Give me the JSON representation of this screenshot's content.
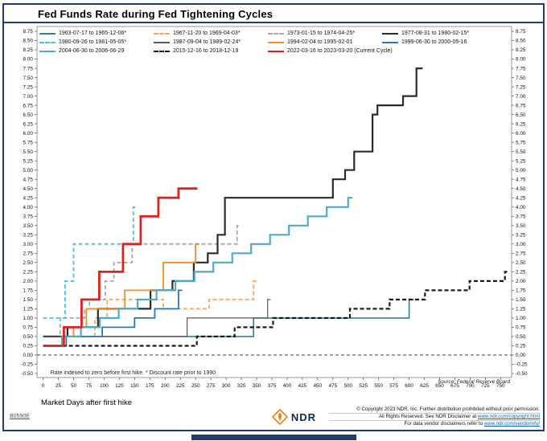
{
  "title": "Fed Funds Rate during Fed Tightening Cycles",
  "footnote": "Rate indexed to zero before first hike.  * Discount rate prior to 1990",
  "source": "Source:   Federal Reserve Board",
  "doc_id": "B0590E",
  "footer": {
    "logo_text": "NDR",
    "line1": "© Copyright 2023 NDR, Inc. Further distribution prohibited without prior permission.",
    "line2_prefix": "All Rights Reserved. See NDR Disclaimer at ",
    "line2_link": "www.ndr.com/copyright.html",
    "line3_prefix": "For data vendor disclaimers refer to ",
    "line3_link": "www.ndr.com/vendorinfo/"
  },
  "colors": {
    "frame_navy": "#1e3c6e",
    "link_blue": "#0563c1",
    "logo_orange": "#f08018",
    "zero_line": "#444444",
    "axis_border": "#9a9a9a"
  },
  "chart_data": {
    "type": "line",
    "step": true,
    "title": "Fed Funds Rate during Fed Tightening Cycles",
    "xlabel": "Market Days after first hike",
    "ylabel": "",
    "x_axis": {
      "min": 0,
      "max": 750,
      "tick_step": 25
    },
    "y_axis": {
      "min": -0.5,
      "max": 8.75,
      "tick_step": 0.25,
      "format": "0.00",
      "sides": "both"
    },
    "grid": false,
    "legend_position": "top",
    "zero_line": {
      "y": 0,
      "style": "dashed"
    },
    "series": [
      {
        "name": "1963-07-17 to 1965-12-06*",
        "color": "#2e8099",
        "dash": "solid",
        "width": 1.6,
        "points": [
          [
            0,
            0.5
          ],
          [
            345,
            1.0
          ],
          [
            600,
            1.5
          ],
          [
            608,
            1.5
          ]
        ]
      },
      {
        "name": "1967-11-20 to 1969-04-03*",
        "color": "#f9a65a",
        "dash": "dashed",
        "width": 1.8,
        "points": [
          [
            0,
            0.5
          ],
          [
            85,
            1.0
          ],
          [
            105,
            1.5
          ],
          [
            197,
            1.25
          ],
          [
            272,
            1.5
          ],
          [
            345,
            2.0
          ],
          [
            350,
            2.0
          ]
        ]
      },
      {
        "name": "1973-01-15 to 1974-04-25*",
        "color": "#a8a8a8",
        "dash": "dashed",
        "width": 1.8,
        "points": [
          [
            0,
            0.5
          ],
          [
            28,
            1.0
          ],
          [
            68,
            1.25
          ],
          [
            76,
            1.5
          ],
          [
            102,
            2.0
          ],
          [
            116,
            2.5
          ],
          [
            146,
            3.0
          ],
          [
            318,
            3.5
          ],
          [
            324,
            3.5
          ]
        ]
      },
      {
        "name": "1977-08-31 to 1980-02-15*",
        "color": "#2b2b2b",
        "dash": "solid",
        "width": 2.2,
        "points": [
          [
            0,
            0.5
          ],
          [
            40,
            0.75
          ],
          [
            90,
            1.25
          ],
          [
            176,
            1.75
          ],
          [
            212,
            2.0
          ],
          [
            247,
            2.5
          ],
          [
            270,
            2.75
          ],
          [
            286,
            3.25
          ],
          [
            298,
            4.25
          ],
          [
            475,
            4.75
          ],
          [
            495,
            5.0
          ],
          [
            510,
            5.5
          ],
          [
            540,
            6.5
          ],
          [
            548,
            6.75
          ],
          [
            590,
            7.0
          ],
          [
            612,
            7.75
          ],
          [
            622,
            7.75
          ]
        ]
      },
      {
        "name": "1980-09-26 to 1981-05-05*",
        "color": "#49c0e8",
        "dash": "dashed",
        "width": 1.8,
        "points": [
          [
            0,
            1.0
          ],
          [
            36,
            2.0
          ],
          [
            50,
            3.0
          ],
          [
            148,
            4.0
          ],
          [
            153,
            4.0
          ]
        ]
      },
      {
        "name": "1987-09-04 to 1989-02-24*",
        "color": "#595959",
        "dash": "solid",
        "width": 1.2,
        "points": [
          [
            0,
            0.5
          ],
          [
            236,
            1.0
          ],
          [
            368,
            1.5
          ],
          [
            373,
            1.5
          ]
        ]
      },
      {
        "name": "1994-02-04 to 1995-02-01",
        "color": "#f08c28",
        "dash": "solid",
        "width": 1.8,
        "points": [
          [
            0,
            0.25
          ],
          [
            32,
            0.5
          ],
          [
            50,
            0.75
          ],
          [
            71,
            1.25
          ],
          [
            134,
            1.75
          ],
          [
            197,
            2.5
          ],
          [
            250,
            3.0
          ],
          [
            256,
            3.0
          ]
        ]
      },
      {
        "name": "1999-06-30 to 2000-05-16",
        "color": "#2e75b6",
        "dash": "solid",
        "width": 1.8,
        "points": [
          [
            0,
            0.25
          ],
          [
            38,
            0.5
          ],
          [
            97,
            0.75
          ],
          [
            150,
            1.0
          ],
          [
            183,
            1.25
          ],
          [
            222,
            1.75
          ],
          [
            228,
            1.75
          ]
        ]
      },
      {
        "name": "2004-06-30 to 2006-06-29",
        "color": "#4bacc6",
        "dash": "solid",
        "width": 2.2,
        "points": [
          [
            0,
            0.25
          ],
          [
            31,
            0.5
          ],
          [
            62,
            0.75
          ],
          [
            93,
            1.0
          ],
          [
            124,
            1.25
          ],
          [
            155,
            1.5
          ],
          [
            186,
            1.75
          ],
          [
            217,
            2.0
          ],
          [
            248,
            2.25
          ],
          [
            279,
            2.5
          ],
          [
            310,
            2.75
          ],
          [
            341,
            3.0
          ],
          [
            372,
            3.25
          ],
          [
            403,
            3.5
          ],
          [
            434,
            3.75
          ],
          [
            465,
            4.0
          ],
          [
            500,
            4.25
          ],
          [
            507,
            4.25
          ]
        ]
      },
      {
        "name": "2015-12-16 to 2018-12-19",
        "color": "#1a1a1a",
        "dash": "dashed",
        "width": 2.2,
        "points": [
          [
            0,
            0.25
          ],
          [
            252,
            0.5
          ],
          [
            314,
            0.75
          ],
          [
            377,
            1.0
          ],
          [
            503,
            1.25
          ],
          [
            568,
            1.5
          ],
          [
            626,
            1.75
          ],
          [
            699,
            2.0
          ],
          [
            757,
            2.25
          ],
          [
            762,
            2.25
          ]
        ]
      },
      {
        "name": "2022-03-16 to 2023-03-20 (Current Cycle)",
        "color": "#dd2222",
        "dash": "solid",
        "width": 2.8,
        "points": [
          [
            0,
            0.25
          ],
          [
            34,
            0.75
          ],
          [
            63,
            1.5
          ],
          [
            92,
            2.25
          ],
          [
            131,
            3.0
          ],
          [
            160,
            3.75
          ],
          [
            189,
            4.25
          ],
          [
            222,
            4.5
          ],
          [
            253,
            4.5
          ]
        ]
      }
    ]
  }
}
